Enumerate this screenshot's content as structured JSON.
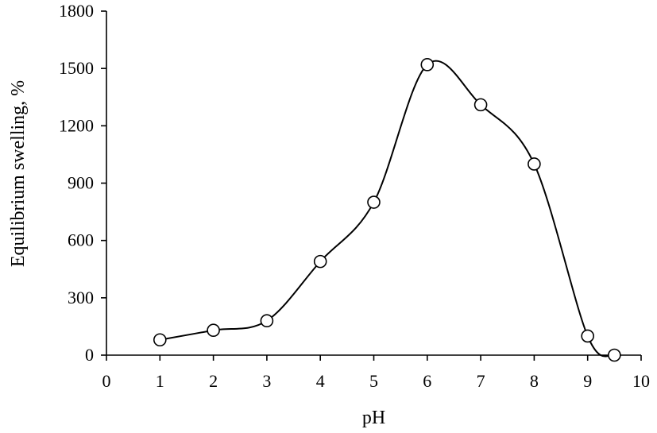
{
  "chart_data": {
    "type": "scatter",
    "title": "",
    "xlabel": "pH",
    "ylabel": "Equilibrium swelling, %",
    "xlim": [
      0,
      10
    ],
    "ylim": [
      0,
      1800
    ],
    "x_ticks": [
      0,
      1,
      2,
      3,
      4,
      5,
      6,
      7,
      8,
      9,
      10
    ],
    "y_ticks": [
      0,
      300,
      600,
      900,
      1200,
      1500,
      1800
    ],
    "grid": false,
    "legend": "none",
    "smooth_line": true,
    "series": [
      {
        "marker": "open-circle",
        "x": [
          1,
          2,
          3,
          4,
          5,
          6,
          7,
          8,
          9,
          9.5
        ],
        "y": [
          80,
          130,
          180,
          490,
          800,
          1520,
          1310,
          1000,
          100,
          0
        ]
      }
    ]
  }
}
